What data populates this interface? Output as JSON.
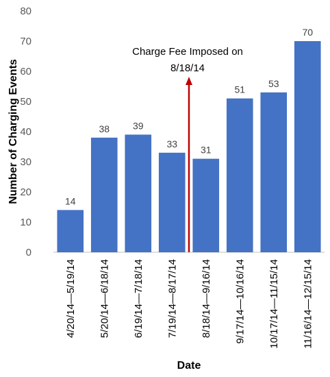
{
  "chart_data": {
    "type": "bar",
    "categories": [
      "4/20/14—5/19/14",
      "5/20/14—6/18/14",
      "6/19/14—7/18/14",
      "7/19/14—8/17/14",
      "8/18/14—9/16/14",
      "9/17/14—10/16/14",
      "10/17/14—11/15/14",
      "11/16/14—12/15/14"
    ],
    "values": [
      14,
      38,
      39,
      33,
      31,
      51,
      53,
      70
    ],
    "xlabel": "Date",
    "ylabel": "Number of Charging Events",
    "ylim": [
      0,
      80
    ],
    "yticks": [
      0,
      10,
      20,
      30,
      40,
      50,
      60,
      70,
      80
    ],
    "grid": false,
    "bar_color": "#4472C4",
    "annotation": {
      "lines": [
        "Charge Fee Imposed on",
        "8/18/14"
      ],
      "between_categories": [
        "7/19/14—8/17/14",
        "8/18/14—9/16/14"
      ],
      "color": "#C00000"
    }
  }
}
